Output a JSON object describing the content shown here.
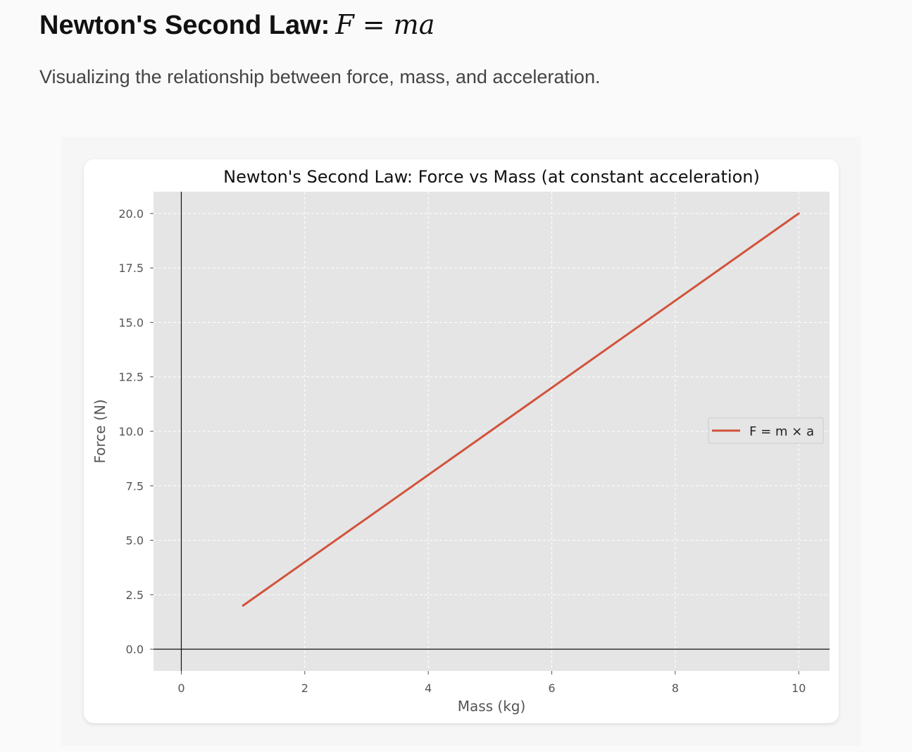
{
  "page": {
    "title": "Newton's Second Law:",
    "title_formula": "F = ma",
    "subtitle": "Visualizing the relationship between force, mass, and acceleration."
  },
  "colors": {
    "line": "#d1533b",
    "plot_background": "#e5e5e5",
    "grid": "#ffffff",
    "reference_axes": "#111111"
  },
  "chart_data": {
    "type": "line",
    "title": "Newton's Second Law: Force vs Mass (at constant acceleration)",
    "xlabel": "Mass (kg)",
    "ylabel": "Force (N)",
    "xlim": [
      -0.45,
      10.5
    ],
    "ylim": [
      -1.0,
      21.0
    ],
    "x_ticks": [
      0,
      2,
      4,
      6,
      8,
      10
    ],
    "x_tick_labels": [
      "0",
      "2",
      "4",
      "6",
      "8",
      "10"
    ],
    "y_ticks": [
      0,
      2.5,
      5,
      7.5,
      10,
      12.5,
      15,
      17.5,
      20
    ],
    "y_tick_labels": [
      "0.0",
      "2.5",
      "5.0",
      "7.5",
      "10.0",
      "12.5",
      "15.0",
      "17.5",
      "20.0"
    ],
    "grid": true,
    "reference_lines": {
      "x": 0,
      "y": 0
    },
    "legend": {
      "position": "center-right"
    },
    "series": [
      {
        "name": "F = m × a",
        "color": "#d1533b",
        "x": [
          1,
          10
        ],
        "y": [
          2,
          20
        ]
      }
    ]
  }
}
